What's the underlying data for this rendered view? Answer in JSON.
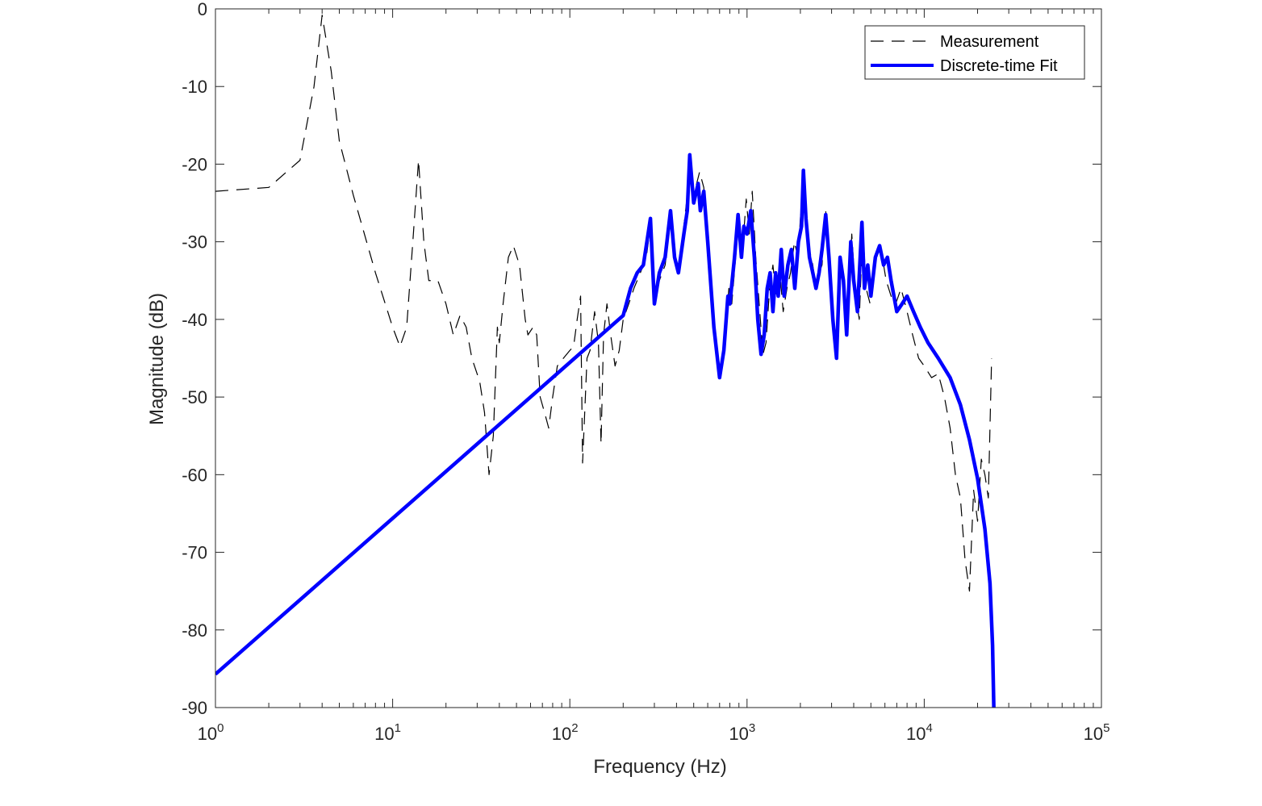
{
  "chart_data": {
    "type": "line",
    "title": "",
    "xlabel": "Frequency (Hz)",
    "ylabel": "Magnitude (dB)",
    "x_scale": "log",
    "xlim": [
      1,
      100000
    ],
    "ylim": [
      -90,
      0
    ],
    "x_ticks": [
      {
        "base": "10",
        "exp": "0",
        "value": 1
      },
      {
        "base": "10",
        "exp": "1",
        "value": 10
      },
      {
        "base": "10",
        "exp": "2",
        "value": 100
      },
      {
        "base": "10",
        "exp": "3",
        "value": 1000
      },
      {
        "base": "10",
        "exp": "4",
        "value": 10000
      },
      {
        "base": "10",
        "exp": "5",
        "value": 100000
      }
    ],
    "y_ticks": [
      {
        "label": "0",
        "value": 0
      },
      {
        "label": "-10",
        "value": -10
      },
      {
        "label": "-20",
        "value": -20
      },
      {
        "label": "-30",
        "value": -30
      },
      {
        "label": "-40",
        "value": -40
      },
      {
        "label": "-50",
        "value": -50
      },
      {
        "label": "-60",
        "value": -60
      },
      {
        "label": "-70",
        "value": -70
      },
      {
        "label": "-80",
        "value": -80
      },
      {
        "label": "-90",
        "value": -90
      }
    ],
    "grid": false,
    "legend_position": "top-right",
    "series": [
      {
        "name": "Measurement",
        "style": "dashed",
        "color": "#000000",
        "points": [
          [
            1,
            -23.5
          ],
          [
            2,
            -23
          ],
          [
            3,
            -19.5
          ],
          [
            3.6,
            -10
          ],
          [
            4.0,
            -0.8
          ],
          [
            4.5,
            -8
          ],
          [
            5,
            -17
          ],
          [
            6,
            -24
          ],
          [
            8,
            -34
          ],
          [
            10,
            -41
          ],
          [
            11,
            -43.5
          ],
          [
            12,
            -41
          ],
          [
            13,
            -30
          ],
          [
            14,
            -19.5
          ],
          [
            15,
            -30
          ],
          [
            16,
            -35
          ],
          [
            18,
            -35
          ],
          [
            20,
            -38
          ],
          [
            22,
            -42
          ],
          [
            24,
            -39.5
          ],
          [
            26,
            -41
          ],
          [
            28,
            -45
          ],
          [
            31,
            -48
          ],
          [
            33,
            -52
          ],
          [
            35,
            -60
          ],
          [
            37,
            -55
          ],
          [
            39,
            -41
          ],
          [
            40,
            -43
          ],
          [
            42,
            -38
          ],
          [
            45,
            -32
          ],
          [
            48,
            -30.5
          ],
          [
            52,
            -33
          ],
          [
            56,
            -40
          ],
          [
            58,
            -42
          ],
          [
            62,
            -41
          ],
          [
            65,
            -42
          ],
          [
            68,
            -50
          ],
          [
            72,
            -52
          ],
          [
            76,
            -54
          ],
          [
            80,
            -50
          ],
          [
            85,
            -46
          ],
          [
            92,
            -45
          ],
          [
            100,
            -44
          ],
          [
            105,
            -43.5
          ],
          [
            110,
            -40
          ],
          [
            115,
            -37
          ],
          [
            118,
            -58.5
          ],
          [
            125,
            -45
          ],
          [
            130,
            -44
          ],
          [
            138,
            -39
          ],
          [
            145,
            -43
          ],
          [
            150,
            -56
          ],
          [
            155,
            -42
          ],
          [
            162,
            -38
          ],
          [
            170,
            -42
          ],
          [
            180,
            -46
          ],
          [
            190,
            -44
          ],
          [
            200,
            -40
          ],
          [
            215,
            -38
          ],
          [
            230,
            -36
          ],
          [
            250,
            -34
          ],
          [
            270,
            -32
          ],
          [
            285,
            -28
          ],
          [
            300,
            -37
          ],
          [
            320,
            -35
          ],
          [
            345,
            -33
          ],
          [
            370,
            -27
          ],
          [
            390,
            -32
          ],
          [
            410,
            -34
          ],
          [
            440,
            -28
          ],
          [
            460,
            -24
          ],
          [
            475,
            -19
          ],
          [
            500,
            -24
          ],
          [
            540,
            -21
          ],
          [
            570,
            -23
          ],
          [
            600,
            -30
          ],
          [
            650,
            -40
          ],
          [
            700,
            -47
          ],
          [
            740,
            -44
          ],
          [
            790,
            -36
          ],
          [
            820,
            -38
          ],
          [
            870,
            -31
          ],
          [
            900,
            -27
          ],
          [
            950,
            -30
          ],
          [
            990,
            -24.5
          ],
          [
            1030,
            -29
          ],
          [
            1070,
            -23.5
          ],
          [
            1120,
            -32
          ],
          [
            1180,
            -39
          ],
          [
            1230,
            -44.5
          ],
          [
            1280,
            -43
          ],
          [
            1340,
            -36
          ],
          [
            1400,
            -33
          ],
          [
            1460,
            -37
          ],
          [
            1520,
            -33
          ],
          [
            1600,
            -39
          ],
          [
            1680,
            -36
          ],
          [
            1760,
            -34
          ],
          [
            1850,
            -30
          ],
          [
            1940,
            -32
          ],
          [
            2000,
            -27
          ],
          [
            2080,
            -21
          ],
          [
            2160,
            -27
          ],
          [
            2250,
            -31
          ],
          [
            2350,
            -33
          ],
          [
            2450,
            -36
          ],
          [
            2550,
            -34
          ],
          [
            2650,
            -33
          ],
          [
            2780,
            -26
          ],
          [
            2900,
            -32
          ],
          [
            3050,
            -40
          ],
          [
            3200,
            -45
          ],
          [
            3350,
            -32
          ],
          [
            3500,
            -34
          ],
          [
            3700,
            -42
          ],
          [
            3900,
            -29
          ],
          [
            4100,
            -37
          ],
          [
            4300,
            -40
          ],
          [
            4500,
            -28
          ],
          [
            4700,
            -36
          ],
          [
            4950,
            -38
          ],
          [
            5200,
            -34
          ],
          [
            5500,
            -31
          ],
          [
            5800,
            -32
          ],
          [
            6100,
            -35
          ],
          [
            6500,
            -37
          ],
          [
            6900,
            -38
          ],
          [
            7400,
            -36
          ],
          [
            8000,
            -39
          ],
          [
            8600,
            -42
          ],
          [
            9300,
            -45
          ],
          [
            10000,
            -46
          ],
          [
            11000,
            -47.5
          ],
          [
            12000,
            -47
          ],
          [
            13000,
            -50
          ],
          [
            14000,
            -54
          ],
          [
            15000,
            -60
          ],
          [
            16000,
            -63
          ],
          [
            17000,
            -71
          ],
          [
            18000,
            -75
          ],
          [
            19000,
            -62
          ],
          [
            20000,
            -66
          ],
          [
            21000,
            -58
          ],
          [
            22000,
            -60
          ],
          [
            23000,
            -63
          ],
          [
            24000,
            -45
          ]
        ]
      },
      {
        "name": "Discrete-time Fit",
        "style": "solid",
        "color": "#0000ff",
        "points": [
          [
            1,
            -85.7
          ],
          [
            200,
            -39.5
          ],
          [
            220,
            -36
          ],
          [
            240,
            -34
          ],
          [
            260,
            -33
          ],
          [
            285,
            -27
          ],
          [
            300,
            -38
          ],
          [
            320,
            -34
          ],
          [
            345,
            -32
          ],
          [
            370,
            -26
          ],
          [
            390,
            -32
          ],
          [
            410,
            -34
          ],
          [
            440,
            -29
          ],
          [
            460,
            -26
          ],
          [
            475,
            -18.8
          ],
          [
            500,
            -25
          ],
          [
            530,
            -22.5
          ],
          [
            545,
            -26
          ],
          [
            570,
            -23.5
          ],
          [
            600,
            -30
          ],
          [
            650,
            -41
          ],
          [
            700,
            -47.5
          ],
          [
            740,
            -44
          ],
          [
            780,
            -37
          ],
          [
            800,
            -38
          ],
          [
            850,
            -32
          ],
          [
            890,
            -26.5
          ],
          [
            930,
            -32
          ],
          [
            960,
            -28
          ],
          [
            1000,
            -29
          ],
          [
            1050,
            -26
          ],
          [
            1100,
            -32
          ],
          [
            1150,
            -40
          ],
          [
            1200,
            -44.5
          ],
          [
            1250,
            -42
          ],
          [
            1300,
            -36
          ],
          [
            1350,
            -34
          ],
          [
            1400,
            -39
          ],
          [
            1450,
            -34
          ],
          [
            1500,
            -37
          ],
          [
            1560,
            -31
          ],
          [
            1620,
            -37
          ],
          [
            1700,
            -33
          ],
          [
            1780,
            -31
          ],
          [
            1860,
            -36
          ],
          [
            1950,
            -30
          ],
          [
            2030,
            -28
          ],
          [
            2080,
            -20.8
          ],
          [
            2150,
            -27
          ],
          [
            2250,
            -32
          ],
          [
            2350,
            -34
          ],
          [
            2450,
            -36
          ],
          [
            2550,
            -34
          ],
          [
            2650,
            -31
          ],
          [
            2780,
            -26.5
          ],
          [
            2900,
            -32
          ],
          [
            3050,
            -40
          ],
          [
            3200,
            -45
          ],
          [
            3350,
            -32
          ],
          [
            3500,
            -35
          ],
          [
            3650,
            -42
          ],
          [
            3850,
            -30
          ],
          [
            4000,
            -35
          ],
          [
            4200,
            -39
          ],
          [
            4450,
            -27.5
          ],
          [
            4600,
            -36
          ],
          [
            4800,
            -33
          ],
          [
            5000,
            -37
          ],
          [
            5300,
            -32
          ],
          [
            5600,
            -30.5
          ],
          [
            5900,
            -33
          ],
          [
            6200,
            -32
          ],
          [
            6500,
            -35
          ],
          [
            7000,
            -39
          ],
          [
            7500,
            -38
          ],
          [
            8000,
            -37
          ],
          [
            8700,
            -39
          ],
          [
            9500,
            -41
          ],
          [
            10500,
            -43
          ],
          [
            12000,
            -45
          ],
          [
            14000,
            -47.5
          ],
          [
            16000,
            -51
          ],
          [
            18000,
            -55.5
          ],
          [
            20000,
            -60.5
          ],
          [
            22000,
            -67
          ],
          [
            23500,
            -74
          ],
          [
            24300,
            -82
          ],
          [
            24700,
            -90
          ]
        ]
      }
    ]
  }
}
